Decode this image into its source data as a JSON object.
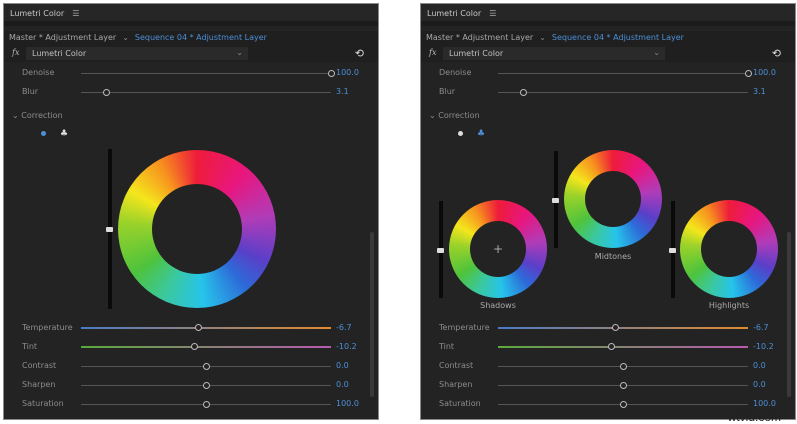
{
  "panels": [
    {
      "mode": "single-wheel",
      "title": "Lumetri Color",
      "menu_icon": "hamburger-icon",
      "master_tab": "Master * Adjustment Layer",
      "sequence_tab": "Sequence 04 * Adjustment Layer",
      "fx_label": "fx",
      "effect": "Lumetri Color",
      "reset_icon": "reset-icon",
      "top_sliders": [
        {
          "label": "Denoise",
          "value": "100.0",
          "position": 1.0
        },
        {
          "label": "Blur",
          "value": "3.1",
          "position": 0.1
        }
      ],
      "section": "Correction",
      "active_view": "single",
      "wheels": [
        {
          "label": "",
          "level": 0.5
        }
      ],
      "sliders": [
        {
          "label": "Temperature",
          "value": "-6.7",
          "position": 0.47,
          "track": [
            "#4a7bc8",
            "#e08a2e"
          ]
        },
        {
          "label": "Tint",
          "value": "-10.2",
          "position": 0.455,
          "track": [
            "#5aaa3a",
            "#b65ab0"
          ]
        },
        {
          "label": "Contrast",
          "value": "0.0",
          "position": 0.5
        },
        {
          "label": "Sharpen",
          "value": "0.0",
          "position": 0.5
        },
        {
          "label": "Saturation",
          "value": "100.0",
          "position": 0.5
        }
      ]
    },
    {
      "mode": "three-wheel",
      "title": "Lumetri Color",
      "menu_icon": "hamburger-icon",
      "master_tab": "Master * Adjustment Layer",
      "sequence_tab": "Sequence 04 * Adjustment Layer",
      "fx_label": "fx",
      "effect": "Lumetri Color",
      "reset_icon": "reset-icon",
      "top_sliders": [
        {
          "label": "Denoise",
          "value": "100.0",
          "position": 1.0
        },
        {
          "label": "Blur",
          "value": "3.1",
          "position": 0.1
        }
      ],
      "section": "Correction",
      "active_view": "three-way",
      "wheels": [
        {
          "label": "Shadows",
          "level": 0.5
        },
        {
          "label": "Midtones",
          "level": 0.5
        },
        {
          "label": "Highlights",
          "level": 0.5
        }
      ],
      "sliders": [
        {
          "label": "Temperature",
          "value": "-6.7",
          "position": 0.47,
          "track": [
            "#4a7bc8",
            "#e08a2e"
          ]
        },
        {
          "label": "Tint",
          "value": "-10.2",
          "position": 0.455,
          "track": [
            "#5aaa3a",
            "#b65ab0"
          ]
        },
        {
          "label": "Contrast",
          "value": "0.0",
          "position": 0.5
        },
        {
          "label": "Sharpen",
          "value": "0.0",
          "position": 0.5
        },
        {
          "label": "Saturation",
          "value": "100.0",
          "position": 0.5
        }
      ]
    }
  ],
  "watermark": "wtvid.com",
  "accent": "#4d8fd6"
}
